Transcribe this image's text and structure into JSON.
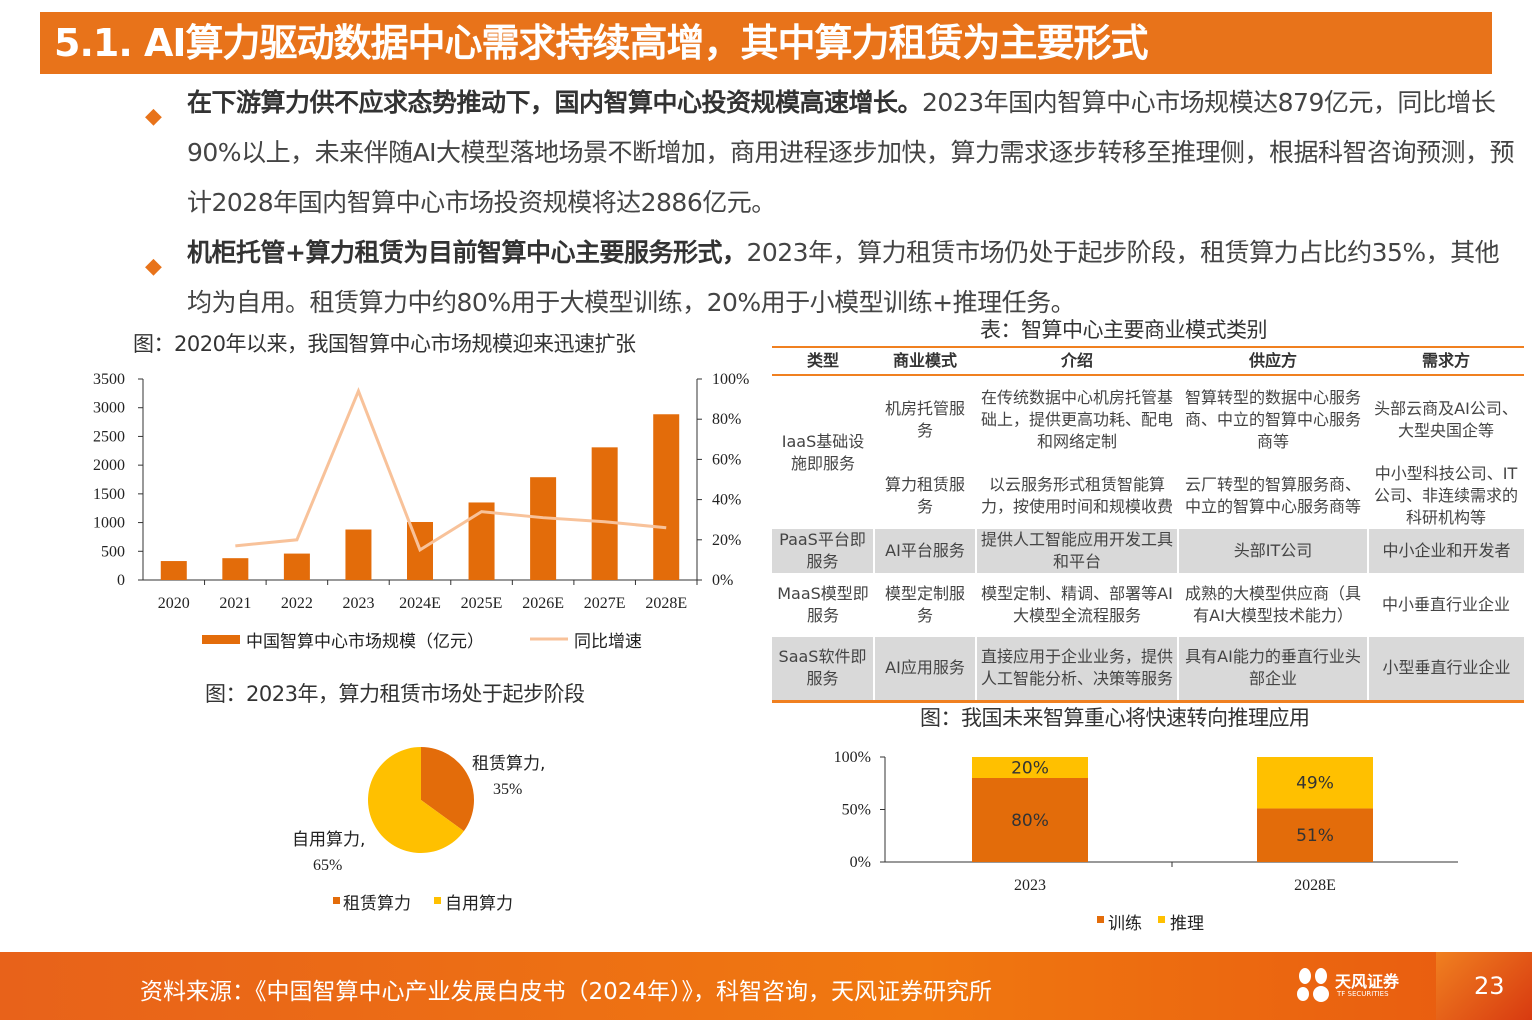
{
  "title": "5.1. AI算力驱动数据中心需求持续高增，其中算力租赁为主要形式",
  "bullets": [
    {
      "bold": "在下游算力供不应求态势推动下，国内智算中心投资规模高速增长。",
      "text": "2023年国内智算中心市场规模达879亿元，同比增长90%以上，未来伴随AI大模型落地场景不断增加，商用进程逐步加快，算力需求逐步转移至推理侧，根据科智咨询预测，预计2028年国内智算中心市场投资规模将达2886亿元。"
    },
    {
      "bold": "机柜托管+算力租赁为目前智算中心主要服务形式，",
      "text": "2023年，算力租赁市场仍处于起步阶段，租赁算力占比约35%，其他均为自用。租赁算力中约80%用于大模型训练，20%用于小模型训练+推理任务。"
    }
  ],
  "captions": {
    "chart1": "图：2020年以来，我国智算中心市场规模迎来迅速扩张",
    "table": "表：智算中心主要商业模式类别",
    "chart2": "图：2023年，算力租赁市场处于起步阶段",
    "chart3": "图：我国未来智算重心将快速转向推理应用"
  },
  "table": {
    "headers": [
      "类型",
      "商业模式",
      "介绍",
      "供应方",
      "需求方"
    ],
    "rows": [
      [
        "IaaS基础设施即服务",
        "机房托管服务",
        "在传统数据中心机房托管基础上，提供更高功耗、配电和网络定制",
        "智算转型的数据中心服务商、中立的智算中心服务商等",
        "头部云商及AI公司、大型央国企等"
      ],
      [
        "",
        "算力租赁服务",
        "以云服务形式租赁智能算力，按使用时间和规模收费",
        "云厂转型的智算服务商、中立的智算中心服务商等",
        "中小型科技公司、IT公司、非连续需求的科研机构等"
      ],
      [
        "PaaS平台即服务",
        "AI平台服务",
        "提供人工智能应用开发工具和平台",
        "头部IT公司",
        "中小企业和开发者"
      ],
      [
        "MaaS模型即服务",
        "模型定制服务",
        "模型定制、精调、部署等AI大模型全流程服务",
        "成熟的大模型供应商（具有AI大模型技术能力）",
        "中小垂直行业企业"
      ],
      [
        "SaaS软件即服务",
        "AI应用服务",
        "直接应用于企业业务，提供人工智能分析、决策等服务",
        "具有AI能力的垂直行业头部企业",
        "小型垂直行业企业"
      ]
    ]
  },
  "chart_data": [
    {
      "type": "bar",
      "categories": [
        "2020",
        "2021",
        "2022",
        "2023",
        "2024E",
        "2025E",
        "2026E",
        "2027E",
        "2028E"
      ],
      "series": [
        {
          "name": "中国智算中心市场规模（亿元）",
          "type": "bar",
          "axis": "left",
          "values": [
            330,
            380,
            460,
            879,
            1010,
            1350,
            1790,
            2310,
            2886
          ],
          "color": "#E36C0A"
        },
        {
          "name": "同比增速",
          "type": "line",
          "axis": "right",
          "values": [
            null,
            17,
            20,
            94,
            15,
            34,
            31,
            29,
            26
          ],
          "color": "#F8C29A"
        }
      ],
      "yticks": [
        "0",
        "500",
        "1000",
        "1500",
        "2000",
        "2500",
        "3000",
        "3500"
      ],
      "ylim": [
        0,
        3500
      ],
      "y2ticks": [
        "0%",
        "20%",
        "40%",
        "60%",
        "80%",
        "100%"
      ],
      "y2lim": [
        0,
        100
      ],
      "legend": "bottom"
    },
    {
      "type": "pie",
      "slices": [
        {
          "label": "租赁算力",
          "value": 35,
          "text": "35%",
          "color": "#E36C0A"
        },
        {
          "label": "自用算力",
          "value": 65,
          "text": "65%",
          "color": "#FFC000"
        }
      ],
      "legend": "bottom"
    },
    {
      "type": "bar",
      "stacked": true,
      "categories": [
        "2023",
        "2028E"
      ],
      "series": [
        {
          "name": "训练",
          "values": [
            80,
            51
          ],
          "labels": [
            "80%",
            "51%"
          ],
          "color": "#E36C0A"
        },
        {
          "name": "推理",
          "values": [
            20,
            49
          ],
          "labels": [
            "20%",
            "49%"
          ],
          "color": "#FFC000"
        }
      ],
      "yticks": [
        "0%",
        "50%",
        "100%"
      ],
      "ylim": [
        0,
        100
      ],
      "legend": "bottom"
    }
  ],
  "footer": {
    "source": "资料来源：《中国智算中心产业发展白皮书（2024年）》，科智咨询，天风证券研究所",
    "logo_cn": "天风证券",
    "logo_en": "TF SECURITIES",
    "page": "23"
  }
}
